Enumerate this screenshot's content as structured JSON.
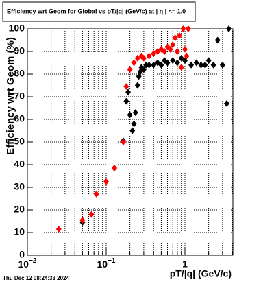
{
  "chart_data": {
    "type": "scatter",
    "title": "Efficiency wrt Geom for Global vs pT/|q| (GeV/c) at |  η  | <= 1.0",
    "x_label": "pT/|q| (GeV/c)",
    "y_label": "Efficiency wrt Geom (%)",
    "footer": "Thu Dec 12 08:24:33 2024",
    "log_x": true,
    "grid": true,
    "xlim": [
      0.01,
      4.06
    ],
    "ylim": [
      0,
      100
    ],
    "xticks": [
      {
        "value": 0.01,
        "label": "10−2"
      },
      {
        "value": 0.1,
        "label": "10−1"
      },
      1
    ],
    "xminorticks": [
      0.02,
      0.03,
      0.04,
      0.05,
      0.06,
      0.07,
      0.08,
      0.09,
      0.2,
      0.3,
      0.4,
      0.5,
      0.6,
      0.7,
      0.8,
      0.9,
      2,
      3,
      4
    ],
    "yticks": [
      0,
      10,
      20,
      30,
      40,
      50,
      60,
      70,
      80,
      90,
      100
    ],
    "series": [
      {
        "color": "#000000",
        "x": [
          0.05,
          0.127,
          0.165,
          0.18,
          0.19,
          0.2,
          0.215,
          0.225,
          0.235,
          0.25,
          0.26,
          0.27,
          0.28,
          0.3,
          0.32,
          0.35,
          0.4,
          0.45,
          0.5,
          0.55,
          0.6,
          0.7,
          0.8,
          0.9,
          1.0,
          1.2,
          1.4,
          1.6,
          1.8,
          2.0,
          2.3,
          2.6,
          3.0,
          3.39,
          3.6
        ],
        "values": [
          14.5,
          38.5,
          50.5,
          68,
          72,
          62,
          55,
          58,
          63,
          75,
          79,
          81,
          83,
          82,
          84,
          84,
          84,
          85,
          84,
          86,
          85,
          86,
          85,
          87,
          86,
          84,
          85,
          84,
          84,
          86,
          84,
          95,
          84,
          67,
          100
        ]
      },
      {
        "color": "#ff0000",
        "x": [
          0.025,
          0.05,
          0.065,
          0.075,
          0.1,
          0.127,
          0.165,
          0.18,
          0.2,
          0.225,
          0.25,
          0.28,
          0.3,
          0.35,
          0.4,
          0.45,
          0.5,
          0.55,
          0.6,
          0.65,
          0.7,
          0.75,
          0.8,
          0.85,
          0.9,
          0.95,
          1.0,
          1.05,
          1.1
        ],
        "values": [
          11.5,
          15.5,
          18,
          27,
          32.5,
          38.5,
          50,
          74.5,
          82,
          85,
          87,
          88,
          87,
          88,
          89,
          90,
          91,
          90,
          92,
          91,
          93,
          96,
          90,
          97,
          83,
          100,
          91,
          88,
          100
        ]
      }
    ]
  }
}
